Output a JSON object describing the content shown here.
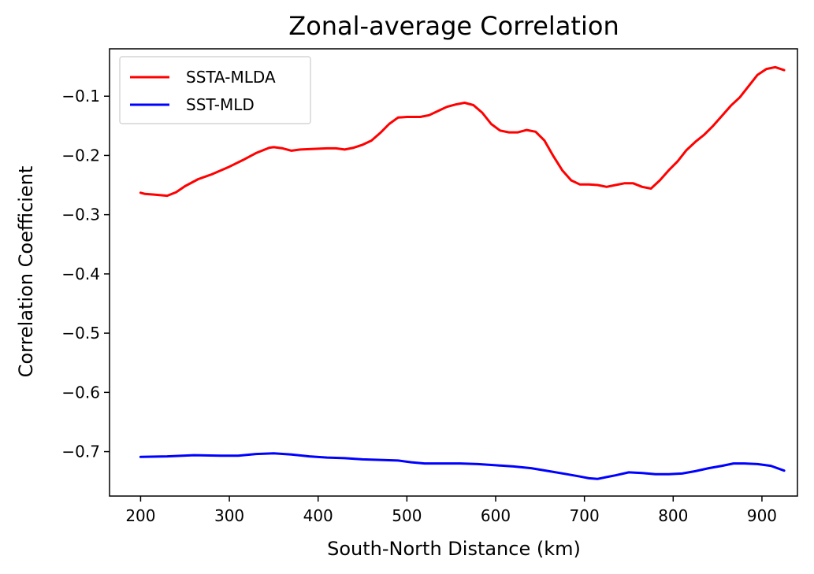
{
  "chart_data": {
    "type": "line",
    "title": "Zonal-average Correlation",
    "xlabel": "South-North Distance (km)",
    "ylabel": "Correlation Coefficient",
    "xlim": [
      165,
      940
    ],
    "ylim": [
      -0.775,
      -0.02
    ],
    "xticks": [
      200,
      300,
      400,
      500,
      600,
      700,
      800,
      900
    ],
    "yticks": [
      -0.7,
      -0.6,
      -0.5,
      -0.4,
      -0.3,
      -0.2,
      -0.1
    ],
    "ytick_labels": [
      "−0.7",
      "−0.6",
      "−0.5",
      "−0.4",
      "−0.3",
      "−0.2",
      "−0.1"
    ],
    "grid": false,
    "legend": "upper-left",
    "series": [
      {
        "name": "SSTA-MLDA",
        "color": "#ff0000",
        "x": [
          200,
          205,
          215,
          230,
          240,
          250,
          265,
          280,
          300,
          315,
          330,
          345,
          350,
          360,
          370,
          380,
          395,
          410,
          420,
          430,
          440,
          450,
          460,
          470,
          480,
          490,
          500,
          515,
          525,
          535,
          545,
          555,
          565,
          575,
          585,
          595,
          605,
          615,
          625,
          635,
          645,
          655,
          665,
          675,
          685,
          695,
          705,
          715,
          725,
          735,
          745,
          755,
          765,
          775,
          785,
          795,
          805,
          815,
          825,
          835,
          845,
          855,
          865,
          875,
          885,
          895,
          905,
          915,
          925
        ],
        "y": [
          -0.263,
          -0.265,
          -0.266,
          -0.268,
          -0.262,
          -0.252,
          -0.24,
          -0.232,
          -0.219,
          -0.208,
          -0.196,
          -0.187,
          -0.186,
          -0.188,
          -0.192,
          -0.19,
          -0.189,
          -0.188,
          -0.188,
          -0.19,
          -0.187,
          -0.182,
          -0.175,
          -0.162,
          -0.147,
          -0.136,
          -0.135,
          -0.135,
          -0.132,
          -0.125,
          -0.118,
          -0.114,
          -0.111,
          -0.115,
          -0.128,
          -0.147,
          -0.158,
          -0.161,
          -0.161,
          -0.157,
          -0.16,
          -0.175,
          -0.201,
          -0.225,
          -0.242,
          -0.249,
          -0.249,
          -0.25,
          -0.253,
          -0.25,
          -0.247,
          -0.247,
          -0.253,
          -0.256,
          -0.242,
          -0.225,
          -0.21,
          -0.191,
          -0.177,
          -0.165,
          -0.15,
          -0.133,
          -0.116,
          -0.102,
          -0.083,
          -0.064,
          -0.054,
          -0.051,
          -0.056
        ]
      },
      {
        "name": "SST-MLD",
        "color": "#0000ff",
        "x": [
          200,
          230,
          260,
          290,
          310,
          330,
          350,
          370,
          390,
          410,
          430,
          450,
          470,
          490,
          505,
          520,
          540,
          560,
          580,
          600,
          620,
          640,
          660,
          680,
          695,
          705,
          715,
          725,
          735,
          750,
          765,
          780,
          795,
          810,
          825,
          840,
          855,
          868,
          880,
          895,
          910,
          925
        ],
        "y": [
          -0.709,
          -0.708,
          -0.706,
          -0.707,
          -0.707,
          -0.704,
          -0.703,
          -0.705,
          -0.708,
          -0.71,
          -0.711,
          -0.713,
          -0.714,
          -0.715,
          -0.718,
          -0.72,
          -0.72,
          -0.72,
          -0.721,
          -0.723,
          -0.725,
          -0.728,
          -0.733,
          -0.738,
          -0.742,
          -0.745,
          -0.746,
          -0.743,
          -0.74,
          -0.735,
          -0.736,
          -0.738,
          -0.738,
          -0.737,
          -0.733,
          -0.728,
          -0.724,
          -0.72,
          -0.72,
          -0.721,
          -0.724,
          -0.732
        ]
      }
    ]
  }
}
